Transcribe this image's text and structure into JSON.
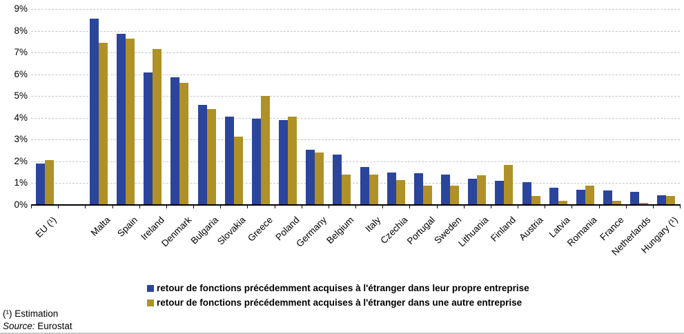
{
  "chart_data": {
    "type": "bar",
    "title": "",
    "unit": "%",
    "categories": [
      "EU (¹)",
      "Malta",
      "Spain",
      "Ireland",
      "Denmark",
      "Bulgaria",
      "Slovakia",
      "Greece",
      "Poland",
      "Germany",
      "Belgium",
      "Italy",
      "Czechia",
      "Portugal",
      "Sweden",
      "Lithuania",
      "Finland",
      "Austria",
      "Latvia",
      "Romania",
      "France",
      "Netherlands",
      "Hungary (¹)"
    ],
    "layout_hints": {
      "gap_after_first_category": true,
      "xlabel_rotation_deg": -45,
      "grid": "horizontal dashed",
      "legend_position": "bottom"
    },
    "series": [
      {
        "name": "retour de fonctions précédemment acquises à l'étranger dans leur propre entreprise",
        "color": "#2A459B",
        "values": [
          1.9,
          8.55,
          7.85,
          6.1,
          5.85,
          4.6,
          4.05,
          3.95,
          3.9,
          2.55,
          2.3,
          1.75,
          1.5,
          1.45,
          1.4,
          1.2,
          1.1,
          1.05,
          0.8,
          0.7,
          0.65,
          0.6,
          0.45
        ]
      },
      {
        "name": "retour de fonctions précédemment acquises à l'étranger dans une autre entreprise",
        "color": "#AF9127",
        "values": [
          2.05,
          7.45,
          7.65,
          7.15,
          5.6,
          4.4,
          3.15,
          5.0,
          4.05,
          2.4,
          1.4,
          1.4,
          1.15,
          0.9,
          0.9,
          1.35,
          1.85,
          0.4,
          0.2,
          0.9,
          0.2,
          0.1,
          0.4
        ]
      }
    ],
    "ylim": [
      0,
      9
    ],
    "ytick_step": 1,
    "ytick_suffix": "%"
  },
  "footnotes": {
    "estimation": "(¹) Estimation",
    "source_label": "Source:",
    "source_value": "Eurostat"
  }
}
